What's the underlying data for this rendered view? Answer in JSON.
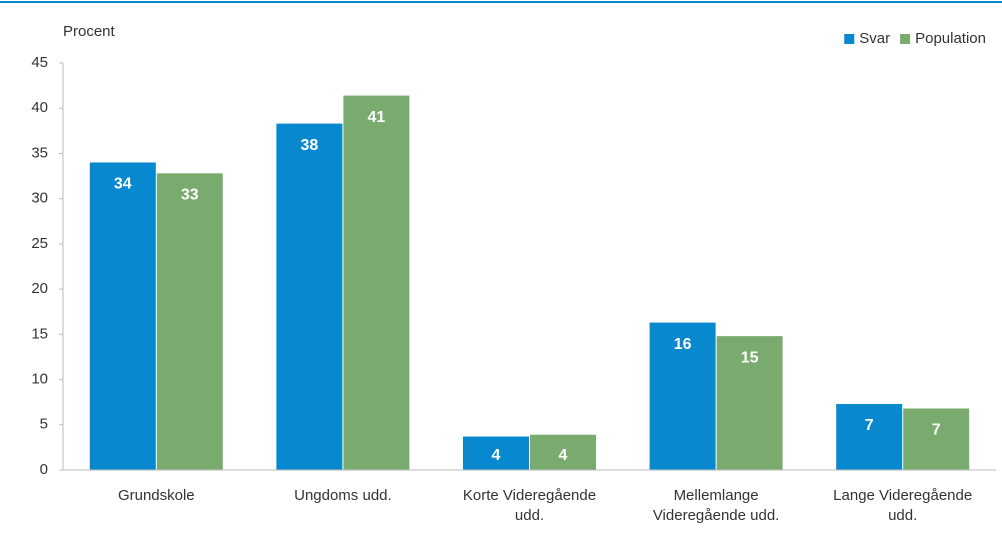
{
  "chart_data": {
    "type": "bar",
    "y_label": "Procent",
    "categories": [
      "Grundskole",
      "Ungdoms udd.",
      "Korte Videregående\nudd.",
      "Mellemlange\nVideregående udd.",
      "Lange Videregående\nudd."
    ],
    "series": [
      {
        "name": "Svar",
        "color": "#0788cf",
        "values": [
          34,
          38.3,
          3.7,
          16.3,
          7.3
        ],
        "value_labels": [
          "34",
          "38",
          "4",
          "16",
          "7"
        ]
      },
      {
        "name": "Population",
        "color": "#78ab6d",
        "values": [
          32.8,
          41.4,
          3.9,
          14.8,
          6.8
        ],
        "value_labels": [
          "33",
          "41",
          "4",
          "15",
          "7"
        ]
      }
    ],
    "ylim": [
      0,
      45
    ],
    "yticks": [
      0,
      5,
      10,
      15,
      20,
      25,
      30,
      35,
      40,
      45
    ],
    "grid": false,
    "legend": "top-right"
  }
}
